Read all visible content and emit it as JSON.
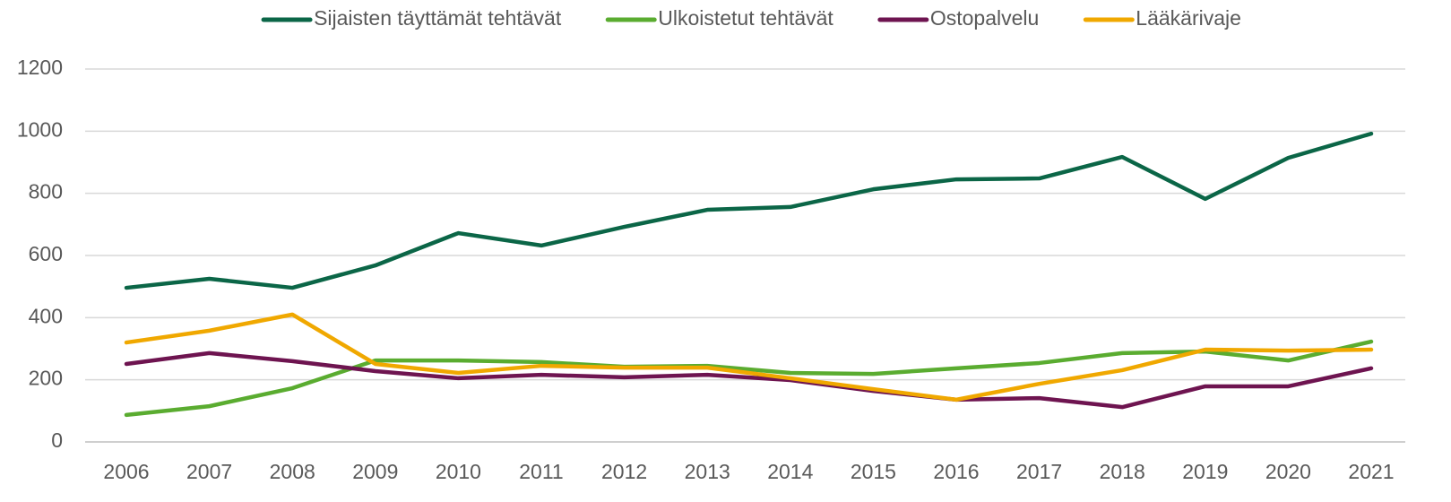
{
  "chart_data": {
    "type": "line",
    "categories": [
      "2006",
      "2007",
      "2008",
      "2009",
      "2010",
      "2011",
      "2012",
      "2013",
      "2014",
      "2015",
      "2016",
      "2017",
      "2018",
      "2019",
      "2020",
      "2021"
    ],
    "series": [
      {
        "name": "Sijaisten täyttämät tehtävät",
        "color": "#0b6647",
        "values": [
          496,
          525,
          496,
          568,
          672,
          632,
          692,
          747,
          756,
          813,
          845,
          848,
          917,
          782,
          914,
          992
        ]
      },
      {
        "name": "Ulkoistetut tehtävät",
        "color": "#5aac30",
        "values": [
          87,
          115,
          173,
          262,
          262,
          257,
          242,
          245,
          222,
          219,
          237,
          254,
          286,
          291,
          262,
          323
        ]
      },
      {
        "name": "Ostopalvelu",
        "color": "#6e1450",
        "values": [
          251,
          286,
          260,
          228,
          205,
          216,
          208,
          216,
          199,
          164,
          136,
          141,
          112,
          179,
          179,
          237
        ]
      },
      {
        "name": "Lääkärivaje",
        "color": "#f0a800",
        "values": [
          320,
          358,
          410,
          251,
          222,
          245,
          239,
          239,
          205,
          170,
          136,
          187,
          231,
          297,
          294,
          297
        ]
      }
    ],
    "ylim": [
      0,
      1200
    ],
    "yticks": [
      0,
      200,
      400,
      600,
      800,
      1000,
      1200
    ],
    "grid": true,
    "legend": "top"
  }
}
